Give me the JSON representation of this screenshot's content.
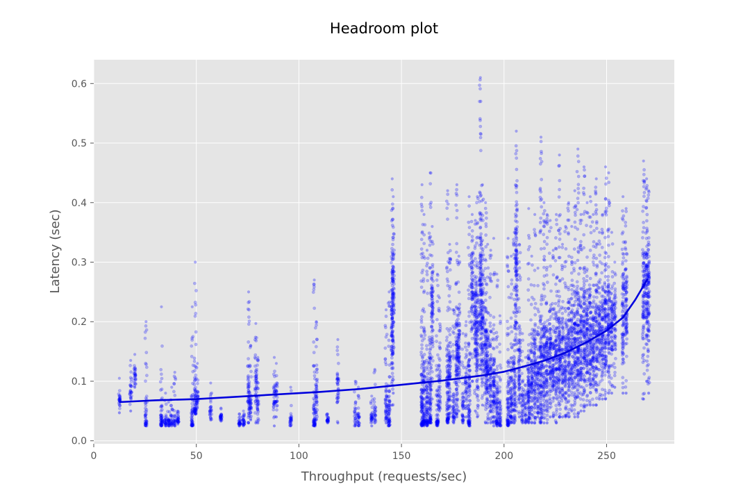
{
  "chart_data": {
    "type": "scatter",
    "title": "Headroom plot",
    "xlabel": "Throughput (requests/sec)",
    "ylabel": "Latency (sec)",
    "xlim": [
      0,
      283
    ],
    "ylim": [
      -0.005,
      0.64
    ],
    "xticks": [
      0,
      50,
      100,
      150,
      200,
      250
    ],
    "xtick_labels": [
      "0",
      "50",
      "100",
      "150",
      "200",
      "250"
    ],
    "yticks": [
      0.0,
      0.1,
      0.2,
      0.3,
      0.4,
      0.5,
      0.6
    ],
    "ytick_labels": [
      "0.0",
      "0.1",
      "0.2",
      "0.3",
      "0.4",
      "0.5",
      "0.6"
    ],
    "grid": true,
    "legend": "none",
    "colors": {
      "plot_background": "#e5e5e5",
      "grid": "#ffffff",
      "points": "#0000ff",
      "fit_line": "#0000dd"
    },
    "series": [
      {
        "type": "scatter",
        "note_columns": "each column is a throughput value with latency samples spanning [min, max], densest near 'dense'",
        "columns": [
          [
            12.5,
            0.047,
            0.105,
            0.07
          ],
          [
            18,
            0.05,
            0.135,
            0.085
          ],
          [
            20,
            0.09,
            0.145,
            0.11
          ],
          [
            25.5,
            0.025,
            0.2,
            0.03
          ],
          [
            33,
            0.025,
            0.225,
            0.03
          ],
          [
            35,
            0.025,
            0.08,
            0.03
          ],
          [
            36.5,
            0.025,
            0.065,
            0.03
          ],
          [
            38,
            0.025,
            0.09,
            0.03
          ],
          [
            39.5,
            0.025,
            0.115,
            0.03
          ],
          [
            41,
            0.028,
            0.05,
            0.035
          ],
          [
            48,
            0.025,
            0.225,
            0.035
          ],
          [
            49.5,
            0.045,
            0.3,
            0.06
          ],
          [
            50.5,
            0.055,
            0.13,
            0.07
          ],
          [
            57,
            0.035,
            0.097,
            0.045
          ],
          [
            62,
            0.033,
            0.055,
            0.04
          ],
          [
            71,
            0.025,
            0.045,
            0.03
          ],
          [
            73,
            0.025,
            0.05,
            0.03
          ],
          [
            75.5,
            0.03,
            0.25,
            0.07
          ],
          [
            76.5,
            0.035,
            0.16,
            0.06
          ],
          [
            79,
            0.03,
            0.197,
            0.1
          ],
          [
            80,
            0.03,
            0.14,
            0.06
          ],
          [
            88,
            0.025,
            0.14,
            0.07
          ],
          [
            89,
            0.04,
            0.13,
            0.08
          ],
          [
            96,
            0.025,
            0.09,
            0.03
          ],
          [
            107.5,
            0.025,
            0.27,
            0.03
          ],
          [
            108.5,
            0.035,
            0.2,
            0.08
          ],
          [
            114,
            0.03,
            0.045,
            0.035
          ],
          [
            119,
            0.03,
            0.17,
            0.09
          ],
          [
            127.5,
            0.025,
            0.1,
            0.035
          ],
          [
            129,
            0.025,
            0.09,
            0.035
          ],
          [
            135.5,
            0.025,
            0.075,
            0.04
          ],
          [
            137,
            0.03,
            0.12,
            0.045
          ],
          [
            142.5,
            0.03,
            0.22,
            0.05
          ],
          [
            144,
            0.025,
            0.25,
            0.04
          ],
          [
            145.5,
            0.06,
            0.44,
            0.19
          ],
          [
            146,
            0.08,
            0.41,
            0.25
          ],
          [
            160,
            0.025,
            0.43,
            0.05
          ],
          [
            161,
            0.025,
            0.38,
            0.06
          ],
          [
            162.5,
            0.025,
            0.32,
            0.05
          ],
          [
            164,
            0.03,
            0.45,
            0.07
          ],
          [
            165,
            0.07,
            0.36,
            0.22
          ],
          [
            167.5,
            0.025,
            0.28,
            0.04
          ],
          [
            168.5,
            0.05,
            0.24,
            0.08
          ],
          [
            172.5,
            0.03,
            0.42,
            0.06
          ],
          [
            173.5,
            0.04,
            0.33,
            0.1
          ],
          [
            175.5,
            0.03,
            0.22,
            0.05
          ],
          [
            177,
            0.04,
            0.43,
            0.12
          ],
          [
            178,
            0.05,
            0.31,
            0.16
          ],
          [
            180,
            0.03,
            0.18,
            0.05
          ],
          [
            181.5,
            0.04,
            0.2,
            0.09
          ],
          [
            183,
            0.025,
            0.41,
            0.07
          ],
          [
            184.5,
            0.1,
            0.38,
            0.25
          ],
          [
            186,
            0.05,
            0.37,
            0.2
          ],
          [
            187,
            0.04,
            0.41,
            0.16
          ],
          [
            188.5,
            0.12,
            0.61,
            0.26
          ],
          [
            189.5,
            0.06,
            0.43,
            0.2
          ],
          [
            191,
            0.03,
            0.4,
            0.15
          ],
          [
            192,
            0.03,
            0.33,
            0.12
          ],
          [
            193.5,
            0.03,
            0.32,
            0.1
          ],
          [
            195,
            0.025,
            0.34,
            0.09
          ],
          [
            196.5,
            0.025,
            0.28,
            0.05
          ],
          [
            198,
            0.025,
            0.21,
            0.04
          ],
          [
            202,
            0.025,
            0.34,
            0.05
          ],
          [
            203.5,
            0.03,
            0.31,
            0.07
          ],
          [
            205,
            0.03,
            0.35,
            0.1
          ],
          [
            206,
            0.05,
            0.52,
            0.3
          ],
          [
            207.5,
            0.04,
            0.33,
            0.12
          ],
          [
            209,
            0.03,
            0.18,
            0.06
          ],
          [
            210.5,
            0.03,
            0.14,
            0.05
          ],
          [
            212,
            0.03,
            0.39,
            0.08
          ],
          [
            213.5,
            0.03,
            0.31,
            0.1
          ],
          [
            215,
            0.03,
            0.38,
            0.12
          ],
          [
            216.5,
            0.04,
            0.29,
            0.1
          ],
          [
            218,
            0.03,
            0.51,
            0.1
          ],
          [
            219.5,
            0.03,
            0.4,
            0.13
          ],
          [
            221,
            0.03,
            0.38,
            0.12
          ],
          [
            222.5,
            0.04,
            0.37,
            0.14
          ],
          [
            224,
            0.04,
            0.32,
            0.13
          ],
          [
            225.5,
            0.03,
            0.38,
            0.13
          ],
          [
            227,
            0.04,
            0.48,
            0.14
          ],
          [
            228.5,
            0.04,
            0.33,
            0.13
          ],
          [
            230,
            0.04,
            0.36,
            0.13
          ],
          [
            231.5,
            0.04,
            0.4,
            0.15
          ],
          [
            233,
            0.05,
            0.36,
            0.15
          ],
          [
            234.5,
            0.04,
            0.42,
            0.16
          ],
          [
            236,
            0.04,
            0.49,
            0.16
          ],
          [
            237.5,
            0.05,
            0.38,
            0.16
          ],
          [
            239,
            0.05,
            0.46,
            0.17
          ],
          [
            240.5,
            0.06,
            0.4,
            0.17
          ],
          [
            242,
            0.06,
            0.41,
            0.17
          ],
          [
            243.5,
            0.06,
            0.38,
            0.17
          ],
          [
            245,
            0.06,
            0.44,
            0.18
          ],
          [
            246.5,
            0.07,
            0.35,
            0.18
          ],
          [
            248,
            0.07,
            0.38,
            0.19
          ],
          [
            249.5,
            0.07,
            0.46,
            0.19
          ],
          [
            251,
            0.08,
            0.45,
            0.19
          ],
          [
            252.5,
            0.08,
            0.35,
            0.2
          ],
          [
            254,
            0.09,
            0.3,
            0.2
          ],
          [
            258,
            0.08,
            0.41,
            0.22
          ],
          [
            259.5,
            0.08,
            0.39,
            0.22
          ],
          [
            268,
            0.07,
            0.47,
            0.25
          ],
          [
            269.5,
            0.1,
            0.44,
            0.25
          ],
          [
            270.5,
            0.08,
            0.42,
            0.25
          ]
        ]
      },
      {
        "type": "line",
        "x": [
          12.5,
          30,
          50,
          70,
          90,
          110,
          130,
          150,
          170,
          190,
          200,
          210,
          220,
          230,
          240,
          250,
          258,
          264,
          270
        ],
        "y": [
          0.065,
          0.068,
          0.07,
          0.074,
          0.078,
          0.082,
          0.087,
          0.094,
          0.101,
          0.11,
          0.116,
          0.125,
          0.135,
          0.148,
          0.165,
          0.185,
          0.207,
          0.237,
          0.272
        ]
      }
    ]
  }
}
